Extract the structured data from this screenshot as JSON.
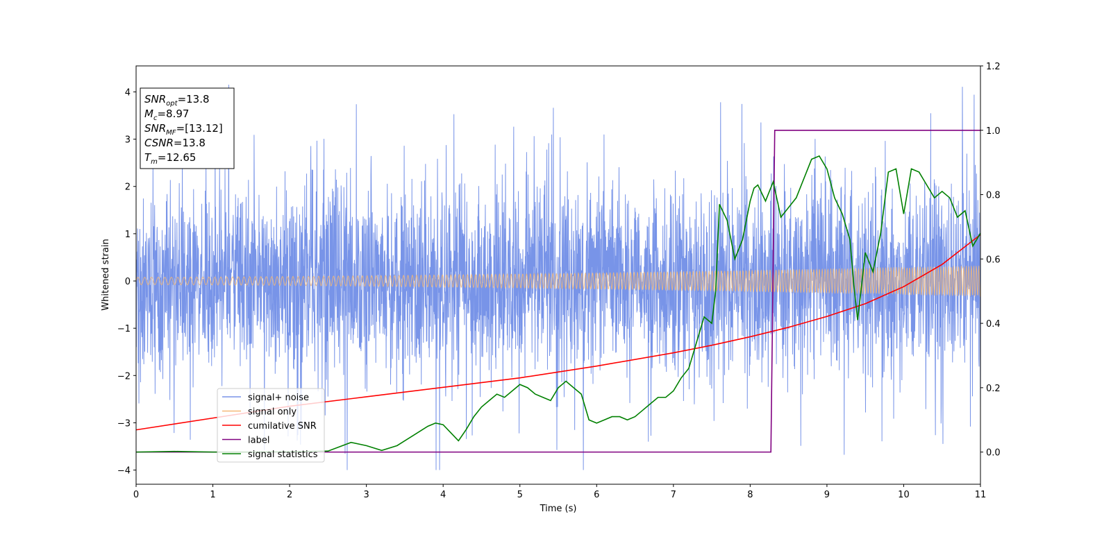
{
  "chart_data": {
    "type": "line",
    "xlabel": "Time (s)",
    "ylabel": "Whitened strain",
    "xlim": [
      0,
      11
    ],
    "ylim": [
      -4.3,
      4.55
    ],
    "y2lim": [
      -0.1,
      1.2
    ],
    "grid": false,
    "legend_position": "lower-left",
    "x_ticks": [
      "0",
      "1",
      "2",
      "3",
      "4",
      "5",
      "6",
      "7",
      "8",
      "9",
      "10",
      "11"
    ],
    "y_ticks": [
      "−4",
      "−3",
      "−2",
      "−1",
      "0",
      "1",
      "2",
      "3",
      "4"
    ],
    "y2_ticks": [
      "0.0",
      "0.2",
      "0.4",
      "0.6",
      "0.8",
      "1.0",
      "1.2"
    ],
    "x_tick_values": [
      0,
      1,
      2,
      3,
      4,
      5,
      6,
      7,
      8,
      9,
      10,
      11
    ],
    "y_tick_values": [
      -4,
      -3,
      -2,
      -1,
      0,
      1,
      2,
      3,
      4
    ],
    "y2_tick_values": [
      0,
      0.2,
      0.4,
      0.6,
      0.8,
      1.0,
      1.2
    ],
    "annotation_box": {
      "lines": [
        {
          "base": "SNR",
          "sub": "opt",
          "rest": "=13.8"
        },
        {
          "base": "M",
          "sub": "c",
          "rest": "=8.97"
        },
        {
          "base": "SNR",
          "sub": "MF",
          "rest": "=[13.12]"
        },
        {
          "base": "CSNR",
          "sub": "",
          "rest": "=13.8"
        },
        {
          "base": "T",
          "sub": "m",
          "rest": "=12.65"
        }
      ]
    },
    "series": [
      {
        "name": "signal+ noise",
        "color": "#7894e8",
        "axis": "left",
        "typical_amplitude": 1.2,
        "peak_amplitude": 4.2
      },
      {
        "name": "signal only",
        "color": "#f5b877",
        "axis": "left",
        "amplitude_start": 0.08,
        "amplitude_end": 0.33
      },
      {
        "name": "cumilative SNR",
        "color": "#ff0000",
        "axis": "left",
        "x": [
          0,
          1,
          2,
          3,
          4,
          5,
          6,
          7,
          7.5,
          8,
          8.5,
          9,
          9.5,
          10,
          10.5,
          11
        ],
        "y": [
          -3.15,
          -2.9,
          -2.65,
          -2.45,
          -2.25,
          -2.05,
          -1.8,
          -1.52,
          -1.36,
          -1.18,
          -0.98,
          -0.75,
          -0.48,
          -0.12,
          0.35,
          0.98
        ]
      },
      {
        "name": "label",
        "color": "#800080",
        "axis": "right",
        "x": [
          0,
          8.27,
          8.32,
          11
        ],
        "y": [
          0,
          0,
          1,
          1
        ]
      },
      {
        "name": "signal statistics",
        "color": "#008000",
        "axis": "right",
        "x": [
          0,
          0.5,
          1,
          1.5,
          2,
          2.5,
          2.8,
          3,
          3.2,
          3.4,
          3.6,
          3.8,
          3.9,
          4.0,
          4.1,
          4.2,
          4.3,
          4.4,
          4.5,
          4.6,
          4.7,
          4.8,
          4.9,
          5.0,
          5.1,
          5.2,
          5.3,
          5.4,
          5.5,
          5.6,
          5.7,
          5.8,
          5.9,
          6.0,
          6.1,
          6.2,
          6.3,
          6.4,
          6.5,
          6.6,
          6.7,
          6.8,
          6.9,
          7.0,
          7.1,
          7.2,
          7.3,
          7.4,
          7.5,
          7.55,
          7.6,
          7.7,
          7.8,
          7.9,
          8.0,
          8.05,
          8.1,
          8.2,
          8.3,
          8.4,
          8.5,
          8.6,
          8.7,
          8.8,
          8.9,
          9.0,
          9.1,
          9.2,
          9.3,
          9.35,
          9.4,
          9.5,
          9.6,
          9.7,
          9.8,
          9.9,
          10.0,
          10.1,
          10.2,
          10.3,
          10.4,
          10.5,
          10.6,
          10.7,
          10.8,
          10.9,
          11.0
        ],
        "y": [
          0.0,
          0.002,
          0.0,
          0.0,
          0.001,
          0.003,
          0.03,
          0.02,
          0.005,
          0.02,
          0.05,
          0.08,
          0.09,
          0.085,
          0.06,
          0.035,
          0.07,
          0.11,
          0.14,
          0.16,
          0.18,
          0.17,
          0.19,
          0.21,
          0.2,
          0.18,
          0.17,
          0.16,
          0.2,
          0.22,
          0.2,
          0.18,
          0.1,
          0.09,
          0.1,
          0.11,
          0.11,
          0.1,
          0.11,
          0.13,
          0.15,
          0.17,
          0.17,
          0.19,
          0.23,
          0.26,
          0.34,
          0.42,
          0.4,
          0.5,
          0.77,
          0.72,
          0.6,
          0.66,
          0.78,
          0.82,
          0.83,
          0.78,
          0.84,
          0.73,
          0.76,
          0.79,
          0.85,
          0.91,
          0.92,
          0.88,
          0.79,
          0.74,
          0.66,
          0.52,
          0.41,
          0.62,
          0.56,
          0.68,
          0.87,
          0.88,
          0.74,
          0.88,
          0.87,
          0.83,
          0.79,
          0.81,
          0.79,
          0.73,
          0.75,
          0.64,
          0.68
        ]
      }
    ]
  }
}
